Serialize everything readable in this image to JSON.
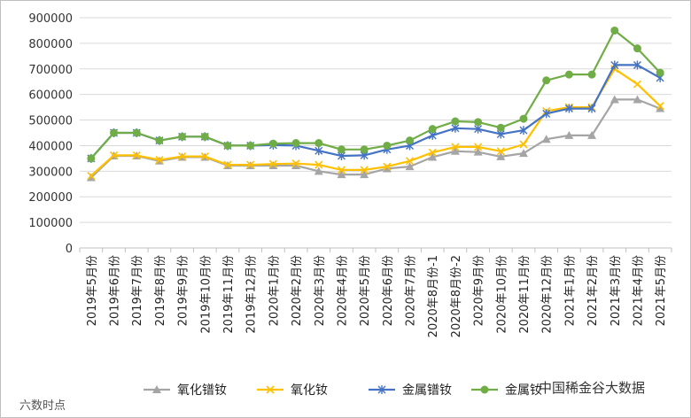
{
  "chart_data": {
    "type": "line",
    "categories": [
      "2019年5月份",
      "2019年6月份",
      "2019年7月份",
      "2019年8月份",
      "2019年9月份",
      "2019年10月份",
      "2019年11月份",
      "2019年12月份",
      "2020年1月份",
      "2020年2月份",
      "2020年3月份",
      "2020年4月份",
      "2020年5月份",
      "2020年6月份",
      "2020年7月份",
      "2020年8月份-1",
      "2020年8月份-2",
      "2020年9月份",
      "2020年10月份",
      "2020年11月份",
      "2020年12月份",
      "2021年1月份",
      "2021年2月份",
      "2021年3月份",
      "2021年4月份",
      "2021年5月份"
    ],
    "ylim": [
      0,
      900000
    ],
    "yticks": [
      "0",
      "100000",
      "200000",
      "300000",
      "400000",
      "500000",
      "600000",
      "700000",
      "800000",
      "900000"
    ],
    "grid": true,
    "legend_position": "bottom",
    "series": [
      {
        "name": "氧化镨钕",
        "color": "#a5a5a5",
        "marker": "triangle",
        "values": [
          275000,
          360000,
          360000,
          340000,
          355000,
          355000,
          322000,
          322000,
          322000,
          322000,
          300000,
          287000,
          287000,
          310000,
          318000,
          355000,
          378000,
          375000,
          357000,
          370000,
          425000,
          440000,
          440000,
          580000,
          580000,
          545000
        ]
      },
      {
        "name": "氧化钕",
        "color": "#ffc000",
        "marker": "x",
        "values": [
          282000,
          362000,
          362000,
          344000,
          358000,
          358000,
          325000,
          325000,
          328000,
          330000,
          325000,
          305000,
          305000,
          318000,
          340000,
          373000,
          395000,
          395000,
          378000,
          405000,
          535000,
          550000,
          550000,
          700000,
          640000,
          555000
        ]
      },
      {
        "name": "金属镨钕",
        "color": "#4472c4",
        "marker": "star",
        "values": [
          350000,
          450000,
          450000,
          420000,
          435000,
          435000,
          400000,
          400000,
          402000,
          400000,
          380000,
          360000,
          362000,
          385000,
          400000,
          440000,
          468000,
          465000,
          445000,
          460000,
          525000,
          545000,
          545000,
          715000,
          715000,
          665000
        ]
      },
      {
        "name": "金属钕",
        "color": "#70ad47",
        "marker": "circle",
        "values": [
          350000,
          450000,
          450000,
          420000,
          435000,
          435000,
          400000,
          400000,
          408000,
          410000,
          410000,
          385000,
          385000,
          400000,
          420000,
          465000,
          495000,
          492000,
          470000,
          505000,
          655000,
          678000,
          678000,
          850000,
          780000,
          685000
        ]
      }
    ]
  },
  "watermark": {
    "left": "六数时点",
    "right": "中国稀金谷大数据"
  }
}
